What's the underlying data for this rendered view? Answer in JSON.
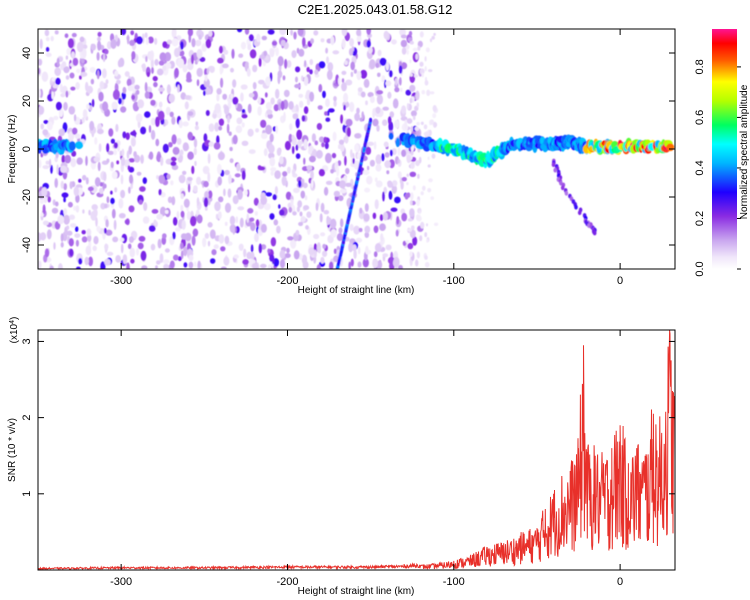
{
  "figure_title": "C2E1.2025.043.01.58.G12",
  "chart_data": [
    {
      "type": "heatmap",
      "xlabel": "Height of straight line (km)",
      "ylabel": "Frequency (Hz)",
      "xlim": [
        -350,
        33
      ],
      "ylim": [
        -50,
        50
      ],
      "xticks": [
        -300,
        -200,
        -100,
        0
      ],
      "yticks": [
        -40,
        -20,
        0,
        20,
        40
      ],
      "colorbar": {
        "label": "Normalized spectral amplitude",
        "range": [
          0,
          0.95
        ],
        "ticks": [
          "0.0",
          "0.2",
          "0.4",
          "0.6",
          "0.8"
        ],
        "tick_values": [
          0.0,
          0.2,
          0.4,
          0.6,
          0.8
        ],
        "colormap": "rainbow",
        "colors": [
          "#ffffff",
          "#e8d9f7",
          "#8a2be2",
          "#0000ff",
          "#00ffff",
          "#00ff00",
          "#ffff00",
          "#ff0000",
          "#ff1493"
        ]
      },
      "features": [
        {
          "name": "noise",
          "x_range": [
            -350,
            -120
          ],
          "y_range": [
            -50,
            50
          ],
          "amplitude": 0.15
        },
        {
          "name": "ridge",
          "points": [
            [
              -350,
              1
            ],
            [
              -330,
              1
            ],
            [
              -130,
              4
            ],
            [
              -100,
              0
            ],
            [
              -80,
              -5
            ],
            [
              -65,
              2
            ],
            [
              -40,
              2
            ],
            [
              -30,
              3
            ],
            [
              -20,
              1
            ],
            [
              0,
              1
            ],
            [
              30,
              1
            ]
          ],
          "amplitude": 0.5
        },
        {
          "name": "streak",
          "points": [
            [
              -170,
              -50
            ],
            [
              -150,
              12
            ]
          ],
          "amplitude": 0.3
        },
        {
          "name": "branch",
          "points": [
            [
              -40,
              -5
            ],
            [
              -35,
              -15
            ],
            [
              -20,
              -30
            ],
            [
              -15,
              -35
            ]
          ],
          "amplitude": 0.25
        }
      ]
    },
    {
      "type": "line",
      "xlabel": "Height of straight line (km)",
      "ylabel": "SNR (10 * v/v)",
      "y_scale_label": "(x10",
      "y_scale_exponent": "4",
      "y_scale_close": ")",
      "xlim": [
        -350,
        33
      ],
      "ylim": [
        0,
        3.15
      ],
      "xticks": [
        -300,
        -200,
        -100,
        0
      ],
      "yticks": [
        1,
        2,
        3
      ],
      "color": "#e8302a",
      "series": [
        {
          "x": [
            -350,
            -300,
            -250,
            -200,
            -150,
            -130,
            -110,
            -100,
            -90,
            -80,
            -70,
            -60,
            -50,
            -45,
            -40,
            -35,
            -30,
            -25,
            -22,
            -20,
            -15,
            -10,
            -5,
            0,
            5,
            10,
            15,
            20,
            25,
            30,
            33
          ],
          "y": [
            0.02,
            0.03,
            0.03,
            0.04,
            0.04,
            0.05,
            0.08,
            0.12,
            0.18,
            0.3,
            0.35,
            0.45,
            0.55,
            0.8,
            1.0,
            1.2,
            1.3,
            1.6,
            2.95,
            1.55,
            1.5,
            1.4,
            1.6,
            1.9,
            1.4,
            1.6,
            1.5,
            2.05,
            1.8,
            3.1,
            2.2
          ]
        }
      ]
    }
  ]
}
